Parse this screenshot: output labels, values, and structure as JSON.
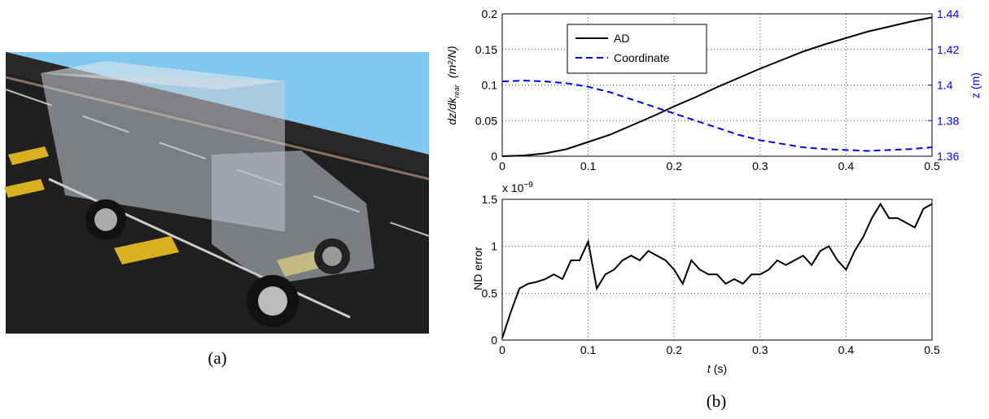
{
  "captions": [
    "(a)",
    "(b)"
  ],
  "chart_data": [
    {
      "type": "line",
      "ylabel": "dz/dk",
      "ylabel_sub": "rear",
      "ylabel_unit": "(m²/N)",
      "y2label": "z (m)",
      "x": [
        0,
        0.025,
        0.05,
        0.075,
        0.1,
        0.125,
        0.15,
        0.175,
        0.2,
        0.225,
        0.25,
        0.275,
        0.3,
        0.325,
        0.35,
        0.375,
        0.4,
        0.425,
        0.45,
        0.475,
        0.5
      ],
      "series": [
        {
          "name": "AD",
          "color": "#000000",
          "dash": false,
          "values": [
            0,
            0.001,
            0.004,
            0.01,
            0.02,
            0.03,
            0.043,
            0.056,
            0.07,
            0.083,
            0.097,
            0.11,
            0.123,
            0.135,
            0.147,
            0.157,
            0.166,
            0.175,
            0.182,
            0.189,
            0.195
          ]
        },
        {
          "name": "Coordinate",
          "color": "#0000ff",
          "dash": true,
          "axis": "y2",
          "values": [
            1.402,
            1.4025,
            1.402,
            1.401,
            1.399,
            1.396,
            1.392,
            1.388,
            1.384,
            1.38,
            1.376,
            1.372,
            1.369,
            1.367,
            1.365,
            1.364,
            1.3635,
            1.363,
            1.3635,
            1.364,
            1.365
          ]
        }
      ],
      "xlim": [
        0,
        0.5
      ],
      "xticks": [
        0,
        0.1,
        0.2,
        0.3,
        0.4,
        0.5
      ],
      "ylim": [
        0,
        0.2
      ],
      "yticks": [
        0,
        0.05,
        0.1,
        0.15,
        0.2
      ],
      "y2lim": [
        1.36,
        1.44
      ],
      "y2ticks": [
        1.36,
        1.38,
        1.4,
        1.42,
        1.44
      ],
      "y2color": "#0000ff",
      "grid": true,
      "legend": "upper left"
    },
    {
      "type": "line",
      "ylabel": "ND error",
      "xlabel_var": "t",
      "xlabel_unit": "(s)",
      "multiplier": "x 10",
      "multiplier_exp": "−9",
      "x": [
        0,
        0.01,
        0.02,
        0.03,
        0.04,
        0.05,
        0.06,
        0.07,
        0.08,
        0.09,
        0.1,
        0.11,
        0.12,
        0.13,
        0.14,
        0.15,
        0.16,
        0.17,
        0.18,
        0.19,
        0.2,
        0.21,
        0.22,
        0.23,
        0.24,
        0.25,
        0.26,
        0.27,
        0.28,
        0.29,
        0.3,
        0.31,
        0.32,
        0.33,
        0.34,
        0.35,
        0.36,
        0.37,
        0.38,
        0.39,
        0.4,
        0.41,
        0.42,
        0.43,
        0.44,
        0.45,
        0.46,
        0.47,
        0.48,
        0.49,
        0.5
      ],
      "series": [
        {
          "color": "#000000",
          "dash": false,
          "values": [
            0.02,
            0.3,
            0.55,
            0.6,
            0.62,
            0.65,
            0.7,
            0.65,
            0.85,
            0.85,
            1.05,
            0.55,
            0.7,
            0.75,
            0.85,
            0.9,
            0.85,
            0.95,
            0.9,
            0.85,
            0.75,
            0.6,
            0.85,
            0.75,
            0.7,
            0.7,
            0.6,
            0.65,
            0.6,
            0.7,
            0.7,
            0.75,
            0.85,
            0.8,
            0.85,
            0.9,
            0.8,
            0.95,
            1.0,
            0.85,
            0.75,
            0.95,
            1.1,
            1.3,
            1.45,
            1.3,
            1.3,
            1.25,
            1.2,
            1.4,
            1.45
          ]
        }
      ],
      "xlim": [
        0,
        0.5
      ],
      "xticks": [
        0,
        0.1,
        0.2,
        0.3,
        0.4,
        0.5
      ],
      "ylim": [
        0,
        1.5
      ],
      "yticks": [
        0,
        0.5,
        1,
        1.5
      ],
      "grid": true
    }
  ]
}
